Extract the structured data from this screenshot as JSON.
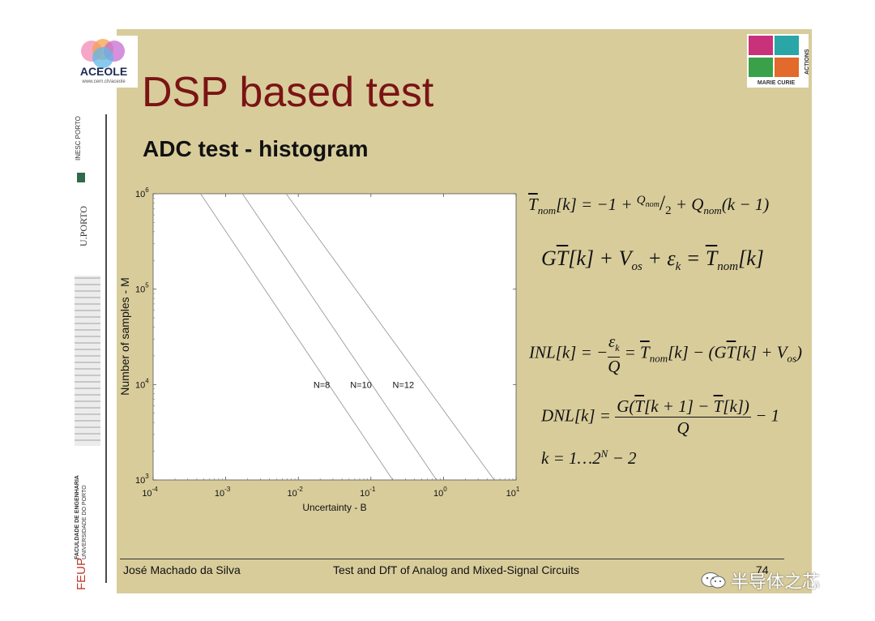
{
  "header": {
    "logo_text": "ACEOLE",
    "logo_url": "www.cern.ch/aceole",
    "title": "DSP based test",
    "subtitle": "ADC test - histogram",
    "badge_top": "ACTIONS",
    "badge_bottom": "MARIE CURIE"
  },
  "sidebar": {
    "inesc": "INESC PORTO",
    "uporto": "U.PORTO",
    "feup_line1": "FACULDADE DE ENGENHARIA",
    "feup_line2": "UNIVERSIDADE DO PORTO",
    "feup": "FEUP"
  },
  "chart_data": {
    "type": "line",
    "xlabel": "Uncertainty - B",
    "ylabel": "Number of samples - M",
    "xscale": "log",
    "yscale": "log",
    "xlim": [
      0.0001,
      10
    ],
    "ylim": [
      1000,
      1000000
    ],
    "x_ticks": [
      {
        "base": "10",
        "exp": "-4"
      },
      {
        "base": "10",
        "exp": "-3"
      },
      {
        "base": "10",
        "exp": "-2"
      },
      {
        "base": "10",
        "exp": "-1"
      },
      {
        "base": "10",
        "exp": "0"
      },
      {
        "base": "10",
        "exp": "1"
      }
    ],
    "y_ticks": [
      {
        "base": "10",
        "exp": "3"
      },
      {
        "base": "10",
        "exp": "4"
      },
      {
        "base": "10",
        "exp": "5"
      },
      {
        "base": "10",
        "exp": "6"
      }
    ],
    "grid": false,
    "series": [
      {
        "name": "N=8",
        "label_at": [
          0.021,
          10000
        ],
        "points": [
          [
            0.00045,
            1000000
          ],
          [
            0.2,
            1000
          ]
        ]
      },
      {
        "name": "N=10",
        "label_at": [
          0.073,
          10000
        ],
        "points": [
          [
            0.0017,
            1000000
          ],
          [
            0.8,
            1000
          ]
        ]
      },
      {
        "name": "N=12",
        "label_at": [
          0.28,
          10000
        ],
        "points": [
          [
            0.0068,
            1000000
          ],
          [
            5.0,
            1000
          ]
        ]
      }
    ]
  },
  "equations": {
    "eq1": "T̅nom[k] = −1 + Qnom/2 + Qnom(k − 1)",
    "eq2": "GT̅[k] + Vos + εk = T̅nom[k]",
    "eq3": "INL[k] = −εk/Q = T̅nom[k] − (GT̅[k] + Vos)",
    "eq4": "DNL[k] = G(T̅[k + 1] − T̅[k])/Q − 1",
    "eq5": "k = 1…2N − 2"
  },
  "footer": {
    "author": "José Machado da Silva",
    "course": "Test and DfT of Analog and Mixed-Signal Circuits",
    "page": "74"
  },
  "watermark": "半导体之芯",
  "colors": {
    "slide_bg": "#d8cc9b",
    "title": "#7a1414",
    "plot_bg": "#ffffff",
    "curve": "#9a9a9a"
  }
}
